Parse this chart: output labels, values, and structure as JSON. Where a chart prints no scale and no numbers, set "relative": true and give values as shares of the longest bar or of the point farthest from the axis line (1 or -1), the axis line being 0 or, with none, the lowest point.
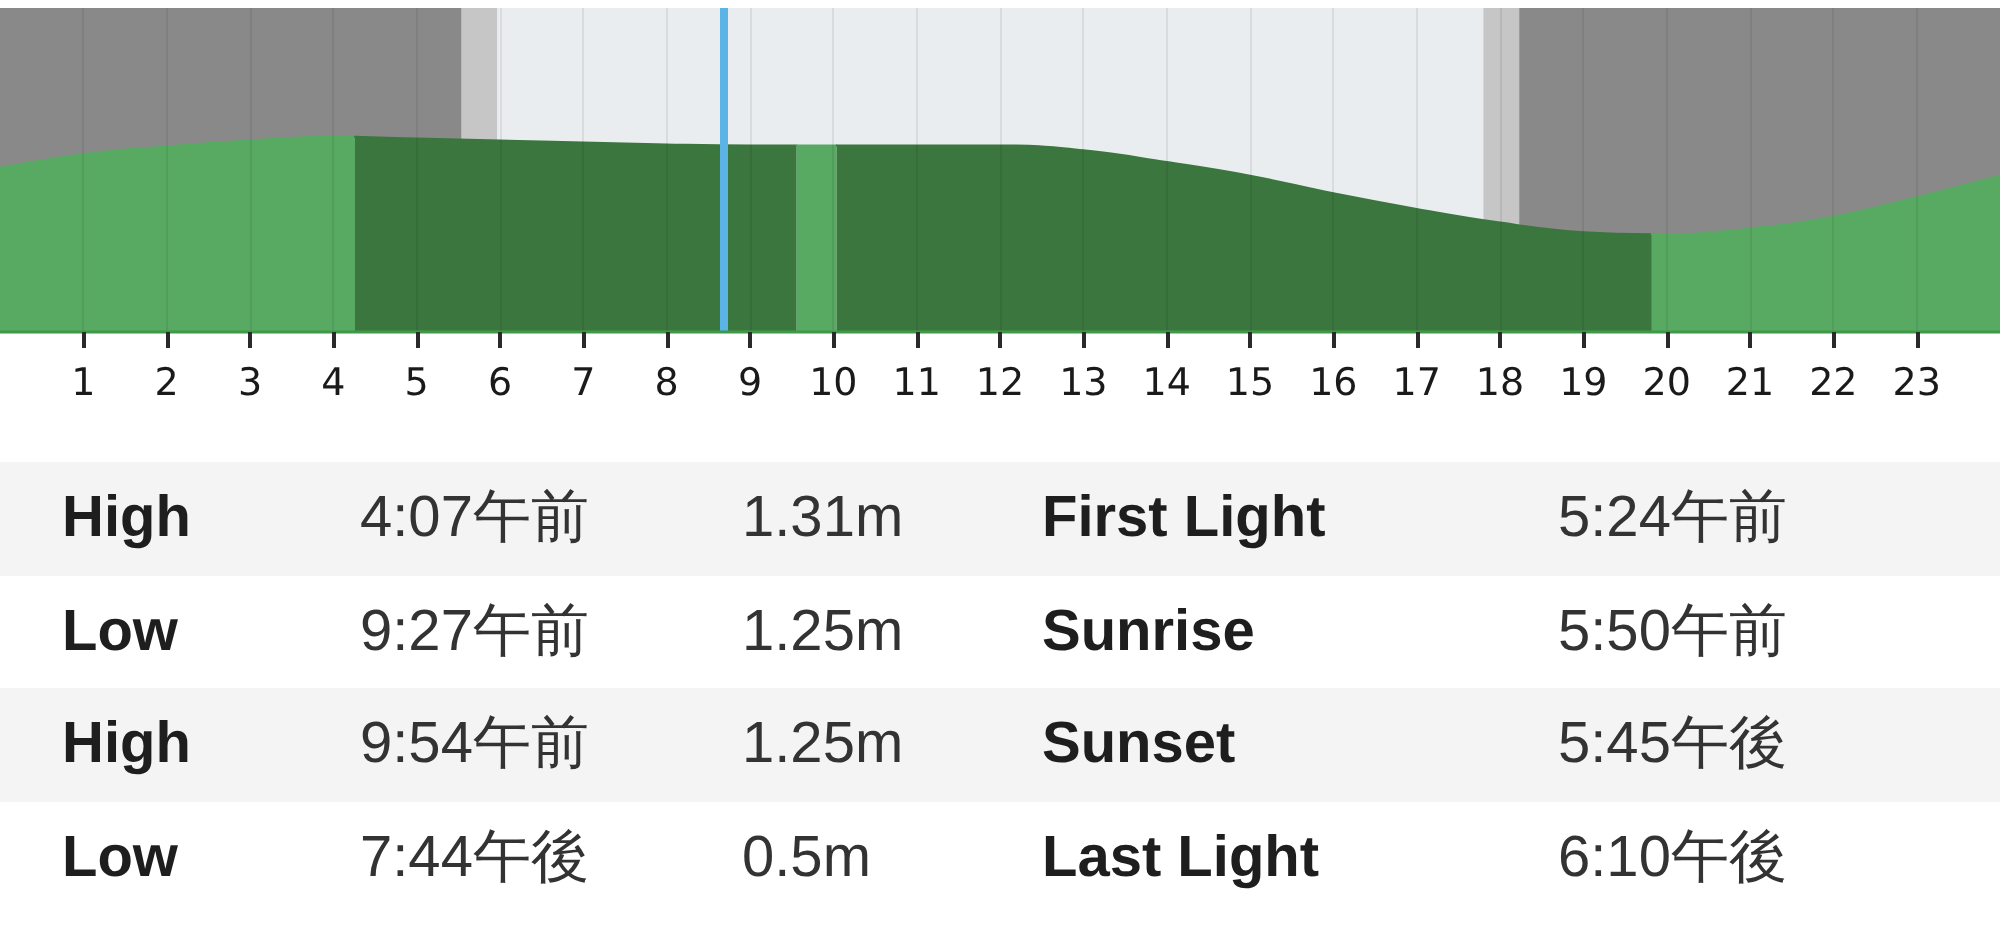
{
  "chart_data": {
    "type": "area",
    "relative": true,
    "xlim": [
      0,
      24
    ],
    "xticks": [
      1,
      2,
      3,
      4,
      5,
      6,
      7,
      8,
      9,
      10,
      11,
      12,
      13,
      14,
      15,
      16,
      17,
      18,
      19,
      20,
      21,
      22,
      23
    ],
    "grid": "x",
    "series": [
      {
        "color": "#58aa62",
        "x": [
          0,
          1,
          2,
          3,
          4,
          4.26
        ],
        "values": [
          0.84,
          0.91,
          0.95,
          0.98,
          1.0,
          1.0
        ]
      },
      {
        "color": "#3b763f",
        "x": [
          4.26,
          5,
          6,
          7,
          8,
          9,
          9.56
        ],
        "values": [
          1.0,
          0.99,
          0.98,
          0.97,
          0.96,
          0.955,
          0.955
        ]
      },
      {
        "color": "#58aa62",
        "x": [
          9.56,
          10.04
        ],
        "values": [
          0.955,
          0.955
        ]
      },
      {
        "color": "#3b763f",
        "x": [
          10.04,
          11,
          12,
          13,
          14,
          15,
          16,
          17,
          18,
          19,
          19.82
        ],
        "values": [
          0.955,
          0.955,
          0.955,
          0.93,
          0.87,
          0.8,
          0.71,
          0.63,
          0.56,
          0.51,
          0.5
        ]
      },
      {
        "color": "#58aa62",
        "x": [
          19.82,
          20,
          21,
          22,
          23,
          24
        ],
        "values": [
          0.5,
          0.5,
          0.53,
          0.59,
          0.69,
          0.8
        ]
      }
    ],
    "bands": [
      {
        "axis": "x",
        "from": 0,
        "to": 5.54,
        "color": "#898989"
      },
      {
        "axis": "x",
        "from": 5.54,
        "to": 5.97,
        "color": "#c6c6c6"
      },
      {
        "axis": "x",
        "from": 5.97,
        "to": 17.8,
        "color": "#e9edef"
      },
      {
        "axis": "x",
        "from": 17.8,
        "to": 18.23,
        "color": "#c6c6c6"
      },
      {
        "axis": "x",
        "from": 18.23,
        "to": 24,
        "color": "#898989"
      }
    ],
    "ref_lines": [
      {
        "axis": "x",
        "value": 8.68,
        "color": "#5cb3e6"
      }
    ],
    "annotations": [
      "High",
      "4:07午前",
      "1.31m",
      "First Light",
      "5:24午前",
      "Low",
      "9:27午前",
      "1.25m",
      "Sunrise",
      "5:50午前",
      "High",
      "9:54午前",
      "1.25m",
      "Sunset",
      "5:45午後",
      "Low",
      "7:44午後",
      "0.5m",
      "Last Light",
      "6:10午後"
    ]
  }
}
